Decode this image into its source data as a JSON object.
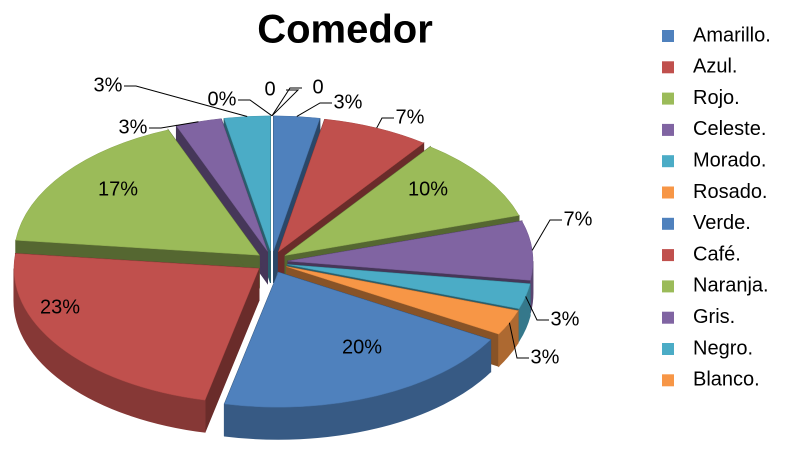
{
  "chart_data": {
    "type": "pie3d",
    "title": "Comedor",
    "categories": [
      "Amarillo.",
      "Azul.",
      "Rojo.",
      "Celeste.",
      "Morado.",
      "Rosado.",
      "Verde.",
      "Café.",
      "Naranja.",
      "Gris.",
      "Negro.",
      "Blanco.",
      null,
      null
    ],
    "values": [
      3,
      7,
      10,
      7,
      3,
      3,
      20,
      23,
      17,
      3,
      3,
      0,
      0,
      0
    ],
    "value_labels": [
      "3%",
      "7%",
      "10%",
      "7%",
      "3%",
      "3%",
      "20%",
      "23%",
      "17%",
      "3%",
      "3%",
      "0%",
      "0",
      "0"
    ],
    "colors": [
      "#4f81bd",
      "#c0504d",
      "#9bbb59",
      "#8064a2",
      "#4bacc6",
      "#f79646",
      "#4f81bd",
      "#c0504d",
      "#9bbb59",
      "#8064a2",
      "#4bacc6",
      "#f79646",
      "#4f81bd",
      "#c0504d"
    ],
    "legend": "right"
  }
}
